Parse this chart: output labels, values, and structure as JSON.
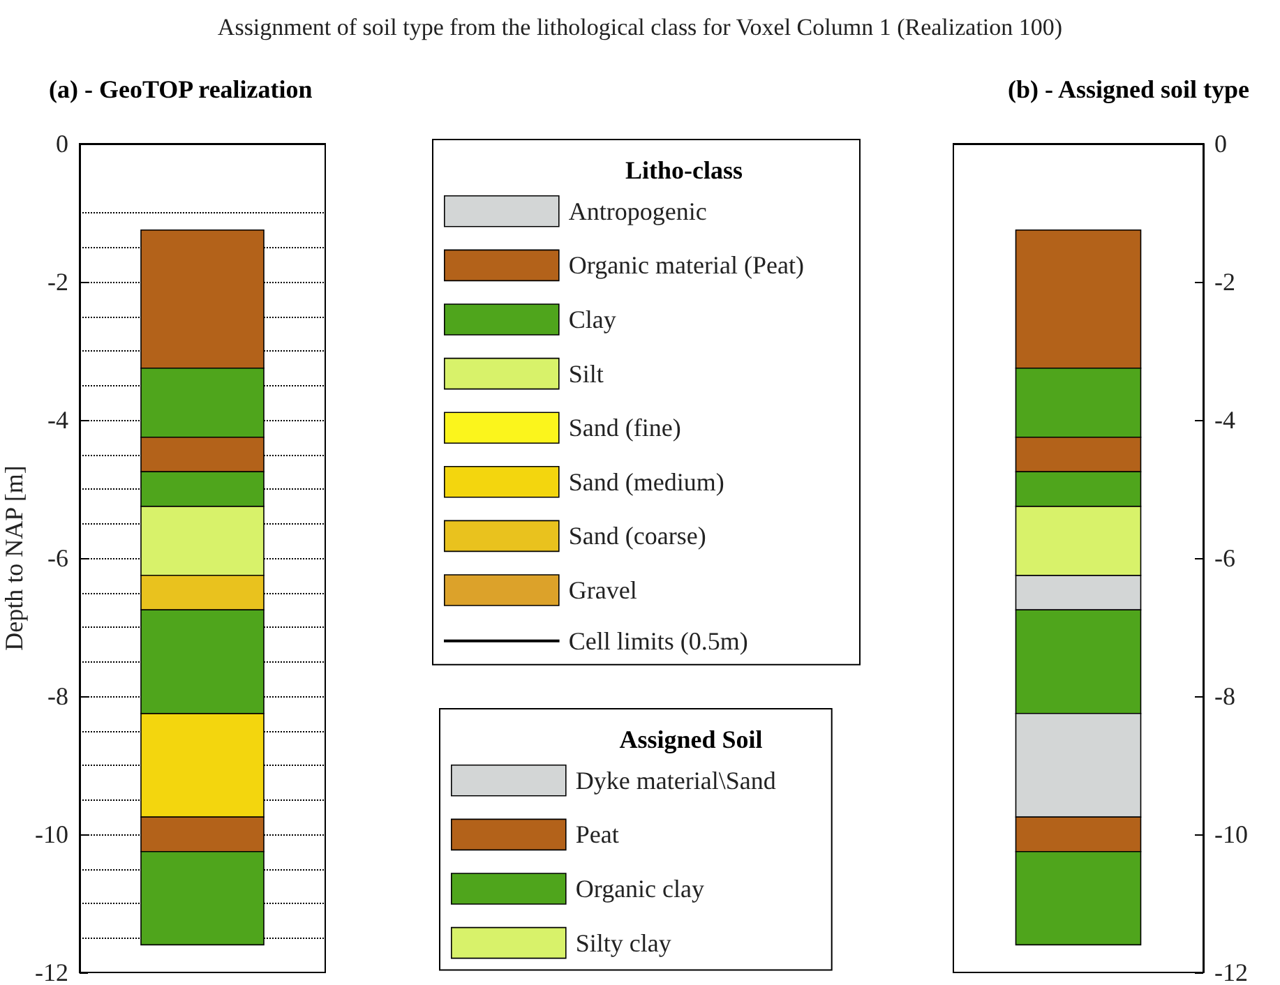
{
  "chart_data": [
    {
      "type": "bar",
      "title": "Assignment of soil type from the lithological class for Voxel Column 1 (Realization 100)",
      "subtitle": "(a) - GeoTOP realization",
      "ylabel": "Depth to NAP [m]",
      "legend_title": "Litho-class",
      "legend": "right",
      "tick_labels": "y",
      "categories": [
        null
      ],
      "ylim": [
        -12,
        0
      ],
      "yticks": [
        0,
        -2,
        -4,
        -6,
        -8,
        -10,
        -12
      ],
      "series": [
        {
          "name": "Antropogenic",
          "color": "#d3d6d6",
          "base": [
            null
          ],
          "values": [
            null
          ]
        },
        {
          "name": "Organic material (Peat)",
          "color": "#b3621a",
          "base": [
            -1.25
          ],
          "values": [
            -2
          ]
        },
        {
          "name": "Clay",
          "color": "#4fa51c",
          "base": [
            -3.25
          ],
          "values": [
            -1
          ]
        },
        {
          "name": "Silt",
          "color": "#d8f26a",
          "base": [
            -5.25
          ],
          "values": [
            -1
          ]
        },
        {
          "name": "Sand (fine)",
          "color": "#fbf51c",
          "base": [
            null
          ],
          "values": [
            null
          ]
        },
        {
          "name": "Sand (medium)",
          "color": "#f3d60e",
          "base": [
            -8.25
          ],
          "values": [
            -1.5
          ]
        },
        {
          "name": "Sand (coarse)",
          "color": "#e9c21e",
          "base": [
            -6.25
          ],
          "values": [
            -0.5
          ]
        },
        {
          "name": "Gravel",
          "color": "#dca22a",
          "base": [
            null
          ],
          "values": [
            null
          ]
        },
        {
          "color": "#b3621a",
          "base": [
            -4.25
          ],
          "values": [
            -0.5
          ]
        },
        {
          "color": "#4fa51c",
          "base": [
            -4.75
          ],
          "values": [
            -0.5
          ]
        },
        {
          "color": "#4fa51c",
          "base": [
            -6.75
          ],
          "values": [
            -1.5
          ]
        },
        {
          "color": "#b3621a",
          "base": [
            -9.75
          ],
          "values": [
            -0.5
          ]
        },
        {
          "color": "#4fa51c",
          "base": [
            -10.25
          ],
          "values": [
            -1.35
          ]
        }
      ],
      "ref_lines": [
        {
          "axis": "y",
          "value": -1,
          "label": "Cell limits (0.5m)",
          "color": "#000000",
          "line_style": "dotted"
        },
        {
          "axis": "y",
          "value": -1.5,
          "color": "#000000",
          "line_style": "dotted"
        },
        {
          "axis": "y",
          "value": -2,
          "color": "#000000",
          "line_style": "dotted"
        },
        {
          "axis": "y",
          "value": -2.5,
          "color": "#000000",
          "line_style": "dotted"
        },
        {
          "axis": "y",
          "value": -3,
          "color": "#000000",
          "line_style": "dotted"
        },
        {
          "axis": "y",
          "value": -3.5,
          "color": "#000000",
          "line_style": "dotted"
        },
        {
          "axis": "y",
          "value": -4,
          "color": "#000000",
          "line_style": "dotted"
        },
        {
          "axis": "y",
          "value": -4.5,
          "color": "#000000",
          "line_style": "dotted"
        },
        {
          "axis": "y",
          "value": -5,
          "color": "#000000",
          "line_style": "dotted"
        },
        {
          "axis": "y",
          "value": -5.5,
          "color": "#000000",
          "line_style": "dotted"
        },
        {
          "axis": "y",
          "value": -6,
          "color": "#000000",
          "line_style": "dotted"
        },
        {
          "axis": "y",
          "value": -6.5,
          "color": "#000000",
          "line_style": "dotted"
        },
        {
          "axis": "y",
          "value": -7,
          "color": "#000000",
          "line_style": "dotted"
        },
        {
          "axis": "y",
          "value": -7.5,
          "color": "#000000",
          "line_style": "dotted"
        },
        {
          "axis": "y",
          "value": -8,
          "color": "#000000",
          "line_style": "dotted"
        },
        {
          "axis": "y",
          "value": -8.5,
          "color": "#000000",
          "line_style": "dotted"
        },
        {
          "axis": "y",
          "value": -9,
          "color": "#000000",
          "line_style": "dotted"
        },
        {
          "axis": "y",
          "value": -9.5,
          "color": "#000000",
          "line_style": "dotted"
        },
        {
          "axis": "y",
          "value": -10,
          "color": "#000000",
          "line_style": "dotted"
        },
        {
          "axis": "y",
          "value": -10.5,
          "color": "#000000",
          "line_style": "dotted"
        },
        {
          "axis": "y",
          "value": -11,
          "color": "#000000",
          "line_style": "dotted"
        },
        {
          "axis": "y",
          "value": -11.5,
          "color": "#000000",
          "line_style": "dotted"
        }
      ]
    },
    {
      "type": "bar",
      "title": "(b) - Assigned soil type",
      "legend_title": "Assigned Soil",
      "legend": "left",
      "tick_labels": "y",
      "categories": [
        null
      ],
      "ylim": [
        -12,
        0
      ],
      "yticks": [
        0,
        -2,
        -4,
        -6,
        -8,
        -10,
        -12
      ],
      "series": [
        {
          "name": "Dyke material\\Sand",
          "color": "#d3d6d6",
          "base": [
            -6.25
          ],
          "values": [
            -0.5
          ]
        },
        {
          "name": "Peat",
          "color": "#b3621a",
          "base": [
            -1.25
          ],
          "values": [
            -2
          ]
        },
        {
          "name": "Organic clay",
          "color": "#4fa51c",
          "base": [
            -3.25
          ],
          "values": [
            -1
          ]
        },
        {
          "name": "Silty clay",
          "color": "#d8f26a",
          "base": [
            -5.25
          ],
          "values": [
            -1
          ]
        },
        {
          "color": "#b3621a",
          "base": [
            -4.25
          ],
          "values": [
            -0.5
          ]
        },
        {
          "color": "#4fa51c",
          "base": [
            -4.75
          ],
          "values": [
            -0.5
          ]
        },
        {
          "color": "#4fa51c",
          "base": [
            -6.75
          ],
          "values": [
            -1.5
          ]
        },
        {
          "color": "#d3d6d6",
          "base": [
            -8.25
          ],
          "values": [
            -1.5
          ]
        },
        {
          "color": "#b3621a",
          "base": [
            -9.75
          ],
          "values": [
            -0.5
          ]
        },
        {
          "color": "#4fa51c",
          "base": [
            -10.25
          ],
          "values": [
            -1.35
          ]
        }
      ]
    }
  ]
}
